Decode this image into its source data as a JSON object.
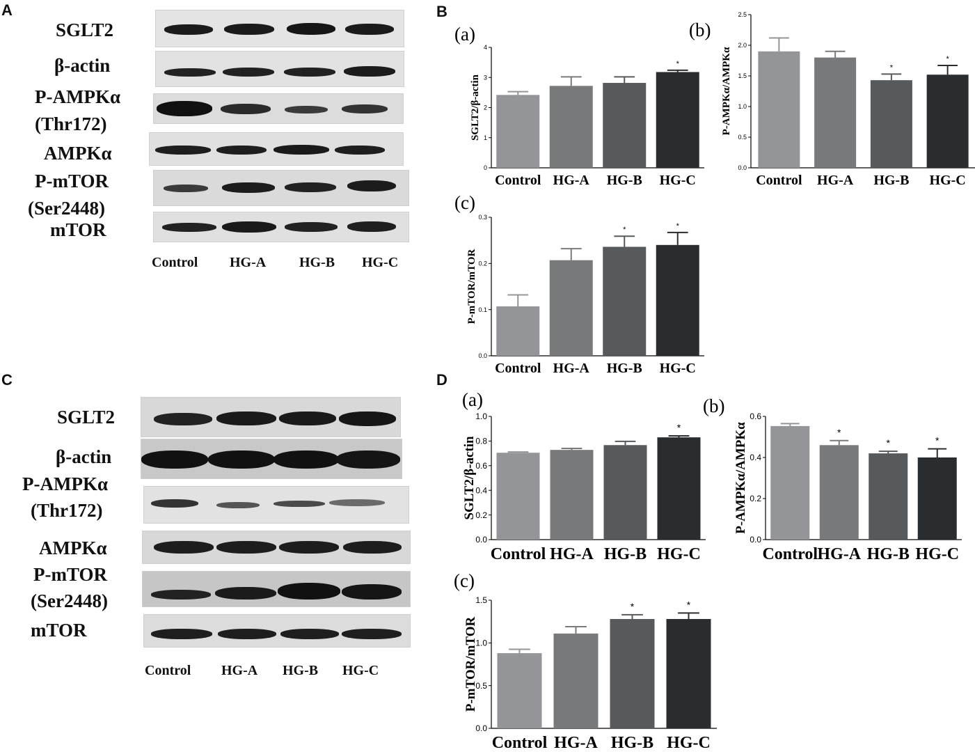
{
  "panels": {
    "A": "A",
    "B": "B",
    "C": "C",
    "D": "D"
  },
  "lanes": [
    "Control",
    "HG-A",
    "HG-B",
    "HG-C"
  ],
  "blot_A": {
    "labels": [
      "SGLT2",
      "β-actin",
      "P-AMPKα",
      "(Thr172)",
      "AMPKα",
      "P-mTOR",
      "(Ser2448)",
      "mTOR"
    ]
  },
  "blot_C": {
    "labels": [
      "SGLT2",
      "β-actin",
      "P-AMPKα",
      "(Thr172)",
      "AMPKα",
      "P-mTOR",
      "(Ser2448)",
      "mTOR"
    ]
  },
  "colors": {
    "Control": "#939598",
    "HG-A": "#77797b",
    "HG-B": "#575a5d",
    "HG-C": "#2a2d30"
  },
  "chart_data": [
    {
      "panel": "B",
      "sub": "(a)",
      "type": "bar",
      "ylabel": "SGLT2/β-actin",
      "categories": [
        "Control",
        "HG-A",
        "HG-B",
        "HG-C"
      ],
      "values": [
        2.42,
        2.72,
        2.82,
        3.18
      ],
      "errors": [
        0.11,
        0.3,
        0.2,
        0.06
      ],
      "sig": [
        "",
        "",
        "",
        "*"
      ],
      "ylim": [
        0,
        4
      ],
      "yticks": [
        "0",
        "1",
        "2",
        "3",
        "4"
      ]
    },
    {
      "panel": "B",
      "sub": "(b)",
      "type": "bar",
      "ylabel": "P-AMPKα/AMPKα",
      "categories": [
        "Control",
        "HG-A",
        "HG-B",
        "HG-C"
      ],
      "values": [
        1.9,
        1.8,
        1.43,
        1.52
      ],
      "errors": [
        0.22,
        0.1,
        0.1,
        0.15
      ],
      "sig": [
        "",
        "",
        "*",
        "*"
      ],
      "ylim": [
        0,
        2.5
      ],
      "yticks": [
        "0.0",
        "0.5",
        "1.0",
        "1.5",
        "2.0",
        "2.5"
      ]
    },
    {
      "panel": "B",
      "sub": "(c)",
      "type": "bar",
      "ylabel": "P-mTOR/mTOR",
      "categories": [
        "Control",
        "HG-A",
        "HG-B",
        "HG-C"
      ],
      "values": [
        0.107,
        0.207,
        0.236,
        0.24
      ],
      "errors": [
        0.025,
        0.025,
        0.023,
        0.027
      ],
      "sig": [
        "",
        "",
        "*",
        "*"
      ],
      "ylim": [
        0,
        0.3
      ],
      "yticks": [
        "0.0",
        "0.1",
        "0.2",
        "0.3"
      ]
    },
    {
      "panel": "D",
      "sub": "(a)",
      "type": "bar",
      "ylabel": "SGLT2/β-actin",
      "categories": [
        "Control",
        "HG-A",
        "HG-B",
        "HG-C"
      ],
      "values": [
        0.705,
        0.728,
        0.767,
        0.83
      ],
      "errors": [
        0.006,
        0.012,
        0.03,
        0.012
      ],
      "sig": [
        "",
        "",
        "",
        "*"
      ],
      "ylim": [
        0,
        1.0
      ],
      "yticks": [
        "0.0",
        "0.2",
        "0.4",
        "0.6",
        "0.8",
        "1.0"
      ]
    },
    {
      "panel": "D",
      "sub": "(b)",
      "type": "bar",
      "ylabel": "P-AMPKα/AMPKα",
      "categories": [
        "Control",
        "HG-A",
        "HG-B",
        "HG-C"
      ],
      "values": [
        0.553,
        0.46,
        0.42,
        0.4
      ],
      "errors": [
        0.012,
        0.022,
        0.01,
        0.042
      ],
      "sig": [
        "",
        "*",
        "*",
        "*"
      ],
      "ylim": [
        0,
        0.6
      ],
      "yticks": [
        "0.0",
        "0.2",
        "0.4",
        "0.6"
      ]
    },
    {
      "panel": "D",
      "sub": "(c)",
      "type": "bar",
      "ylabel": "P-mTOR/mTOR",
      "categories": [
        "Control",
        "HG-A",
        "HG-B",
        "HG-C"
      ],
      "values": [
        0.88,
        1.11,
        1.28,
        1.28
      ],
      "errors": [
        0.045,
        0.08,
        0.05,
        0.07
      ],
      "sig": [
        "",
        "",
        "*",
        "*"
      ],
      "ylim": [
        0,
        1.5
      ],
      "yticks": [
        "0.0",
        "0.5",
        "1.0",
        "1.5"
      ]
    }
  ]
}
